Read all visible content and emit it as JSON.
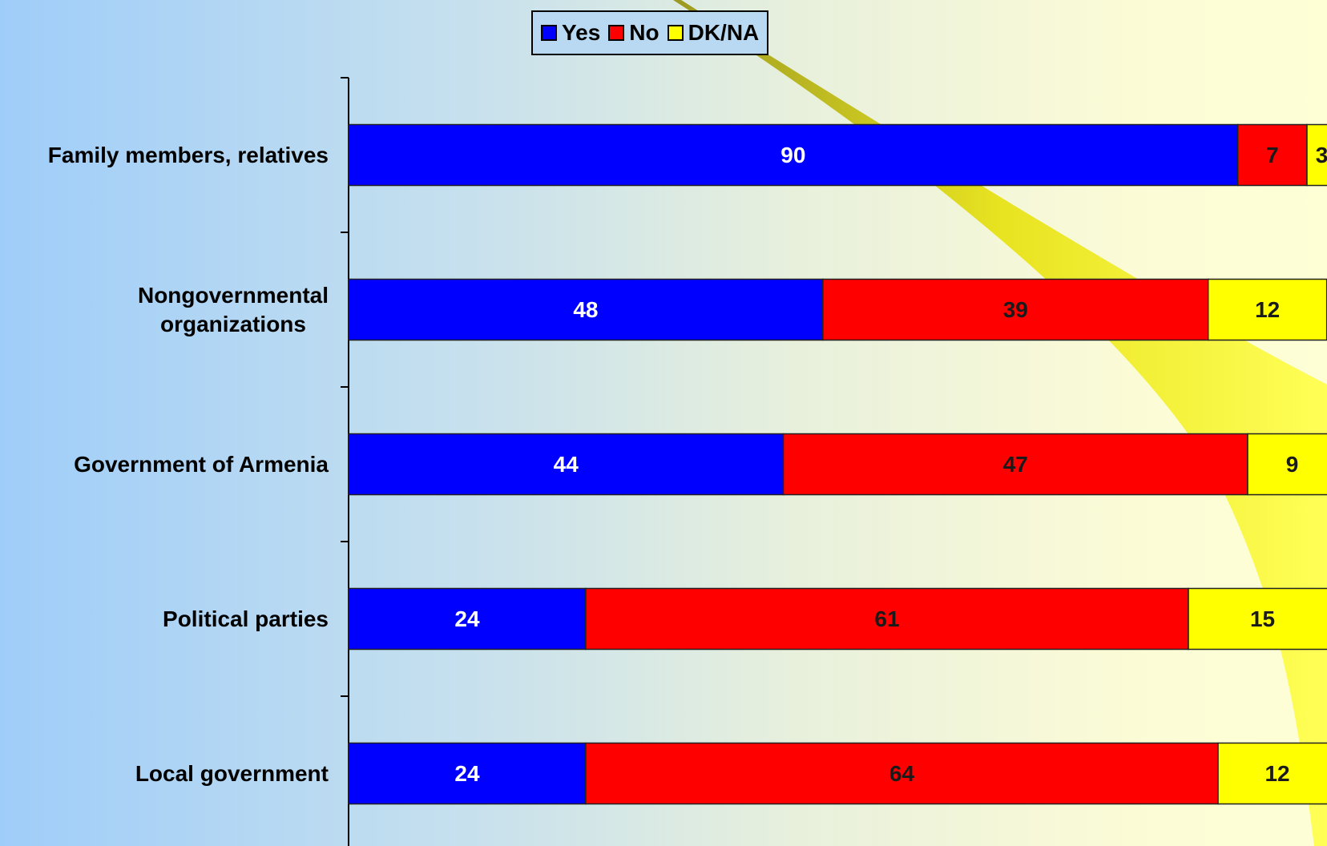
{
  "chart_data": {
    "type": "stacked-bar-horizontal",
    "categories": [
      "Family members, relatives",
      "Nongovernmental\norganizations",
      "Government of Armenia",
      "Political parties",
      "Local government"
    ],
    "series": [
      {
        "name": "Yes",
        "color": "#0000ff",
        "label_color": "#ffffff",
        "values": [
          90,
          48,
          44,
          24,
          24
        ]
      },
      {
        "name": "No",
        "color": "#ff0000",
        "label_color": "#1a1a1a",
        "values": [
          7,
          39,
          47,
          61,
          64
        ]
      },
      {
        "name": "DK/NA",
        "color": "#ffff00",
        "label_color": "#1a1a1a",
        "values": [
          3,
          12,
          9,
          15,
          12
        ]
      }
    ],
    "xlim": [
      0,
      100
    ],
    "legend": "top"
  }
}
